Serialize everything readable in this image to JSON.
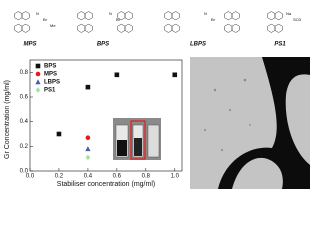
{
  "chart_data": {
    "type": "scatter",
    "x_label": "Stabiliser concentration (mg/ml)",
    "y_label": "Gr Concentration (mg/ml)",
    "xlim": [
      0,
      1.05
    ],
    "ylim": [
      0,
      0.9
    ],
    "xticks": [
      {
        "value": 0,
        "label": "0.0"
      },
      {
        "value": 0.2,
        "label": "0.2"
      },
      {
        "value": 0.4,
        "label": "0.4"
      },
      {
        "value": 0.6,
        "label": "0.6"
      },
      {
        "value": 0.8,
        "label": "0.8"
      },
      {
        "value": 1,
        "label": "1.0"
      }
    ],
    "yticks": [
      {
        "value": 0,
        "label": "0.0"
      },
      {
        "value": 0.2,
        "label": "0.2"
      },
      {
        "value": 0.4,
        "label": "0.4"
      },
      {
        "value": 0.6,
        "label": "0.6"
      },
      {
        "value": 0.8,
        "label": "0.8"
      }
    ],
    "legend": "upper left",
    "series": [
      {
        "name": "BPS",
        "color": "#111111",
        "marker": "square",
        "x": [
          0.2,
          0.4,
          0.6,
          1.0
        ],
        "values": [
          0.3,
          0.68,
          0.78,
          0.78
        ]
      },
      {
        "name": "MPS",
        "color": "#e41a1c",
        "marker": "circle",
        "x": [
          0.4
        ],
        "values": [
          0.27
        ]
      },
      {
        "name": "LBPS",
        "color": "#4a5bb0",
        "marker": "triangle",
        "x": [
          0.4
        ],
        "values": [
          0.18
        ]
      },
      {
        "name": "PS1",
        "color": "#9ee6a0",
        "marker": "diamond",
        "x": [
          0.4
        ],
        "values": [
          0.11
        ]
      }
    ]
  },
  "structures": [
    {
      "label": "MPS",
      "atoms": [
        "N",
        "Br",
        "Me"
      ]
    },
    {
      "label": "BPS",
      "atoms": [
        "N",
        "Br"
      ]
    },
    {
      "label": "LBPS",
      "atoms": [
        "N",
        "Br"
      ]
    },
    {
      "label": "PS1",
      "atoms": [
        "Na",
        "SO3"
      ]
    }
  ]
}
